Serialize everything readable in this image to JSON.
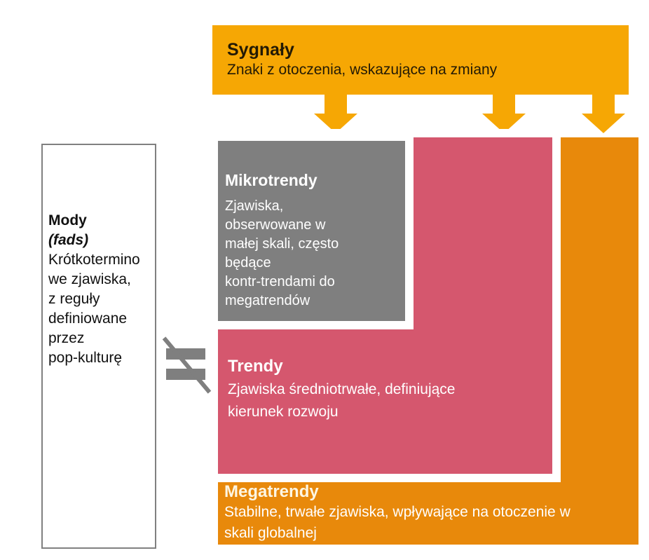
{
  "signals": {
    "title": "Sygnały",
    "subtitle": "Znaki z otoczenia, wskazujące na zmiany"
  },
  "fads": {
    "title": "Mody",
    "subtitle": "(fads)",
    "body": "Krótkotermino\nwe zjawiska,\nz reguły\ndefiniowane\nprzez\npop-kulturę"
  },
  "microtrends": {
    "title": "Mikrotrendy",
    "body": "Zjawiska,\nobserwowane w\nmałej skali, często\nbędące\nkontr-trendami do\nmegatrendów"
  },
  "trends": {
    "title": "Trendy",
    "body": "Zjawiska średniotrwałe, definiujące\nkierunek rozwoju"
  },
  "megatrends": {
    "title": "Megatrendy",
    "body": "Stabilne, trwałe zjawiska, wpływające na otoczenie w\nskali globalnej"
  },
  "colors": {
    "signal_yellow": "#F6A704",
    "mega_orange": "#E8890B",
    "trend_pink": "#D5576E",
    "micro_gray": "#7F7F7F",
    "box_border_gray": "#808080",
    "text_dark": "#231a05",
    "text_light": "#FFFFFF"
  }
}
